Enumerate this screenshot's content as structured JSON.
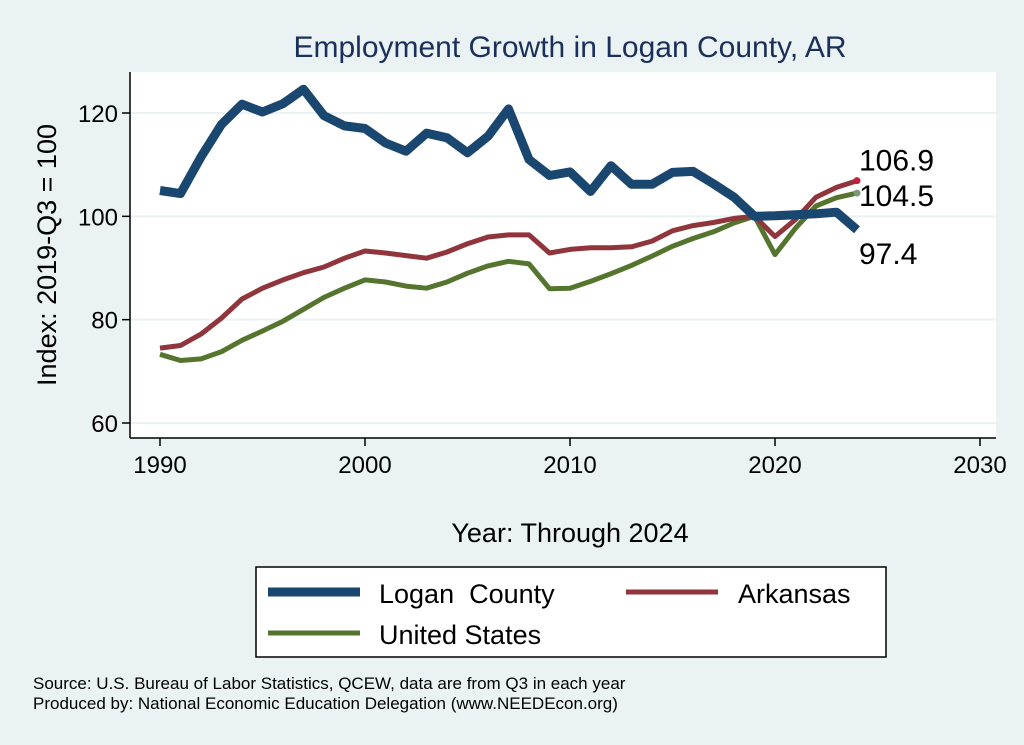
{
  "chart_data": {
    "type": "line",
    "title": "Employment Growth in Logan County, AR",
    "xlabel": "Year: Through 2024",
    "ylabel": "Index: 2019-Q3 = 100",
    "xlim": [
      1990,
      2030
    ],
    "ylim": [
      60,
      128
    ],
    "xticks": [
      1990,
      2000,
      2010,
      2020,
      2030
    ],
    "yticks": [
      60,
      80,
      100,
      120
    ],
    "grid": true,
    "legend_position": "bottom",
    "x": [
      1990,
      1991,
      1992,
      1993,
      1994,
      1995,
      1996,
      1997,
      1998,
      1999,
      2000,
      2001,
      2002,
      2003,
      2004,
      2005,
      2006,
      2007,
      2008,
      2009,
      2010,
      2011,
      2012,
      2013,
      2014,
      2015,
      2016,
      2017,
      2018,
      2019,
      2020,
      2021,
      2022,
      2023,
      2024
    ],
    "series": [
      {
        "name": "Logan  County",
        "color": "#1a476f",
        "values": [
          105.0,
          104.4,
          111.5,
          117.8,
          121.7,
          120.2,
          121.8,
          124.6,
          119.5,
          117.5,
          117.0,
          114.2,
          112.6,
          116.1,
          115.2,
          112.3,
          115.5,
          120.8,
          111.0,
          107.9,
          108.6,
          104.8,
          109.8,
          106.2,
          106.2,
          108.5,
          108.7,
          106.3,
          103.7,
          100.0,
          100.1,
          100.3,
          100.5,
          100.8,
          97.4
        ],
        "end_label": "97.4"
      },
      {
        "name": "Arkansas",
        "color": "#90353b",
        "values": [
          74.5,
          75.0,
          77.2,
          80.3,
          84.0,
          86.1,
          87.7,
          89.1,
          90.2,
          91.9,
          93.3,
          92.9,
          92.4,
          91.9,
          93.1,
          94.7,
          96.0,
          96.4,
          96.4,
          92.9,
          93.6,
          93.9,
          93.9,
          94.1,
          95.2,
          97.2,
          98.2,
          98.8,
          99.6,
          100.0,
          96.1,
          99.4,
          103.7,
          105.6,
          106.9
        ],
        "end_label": "106.9"
      },
      {
        "name": "United States",
        "color": "#55752f",
        "values": [
          73.3,
          72.1,
          72.4,
          73.8,
          76.0,
          77.8,
          79.7,
          82.0,
          84.3,
          86.1,
          87.7,
          87.3,
          86.5,
          86.1,
          87.3,
          89.0,
          90.4,
          91.3,
          90.8,
          86.0,
          86.1,
          87.4,
          88.9,
          90.5,
          92.3,
          94.2,
          95.7,
          97.0,
          98.7,
          100.0,
          92.6,
          97.7,
          102.0,
          103.6,
          104.5
        ],
        "end_label": "104.5"
      }
    ]
  },
  "source_line1": "Source: U.S. Bureau of Labor Statistics, QCEW, data are from Q3 in each year",
  "source_line2": "Produced by: National Economic Education Delegation (www.NEEDEcon.org)"
}
